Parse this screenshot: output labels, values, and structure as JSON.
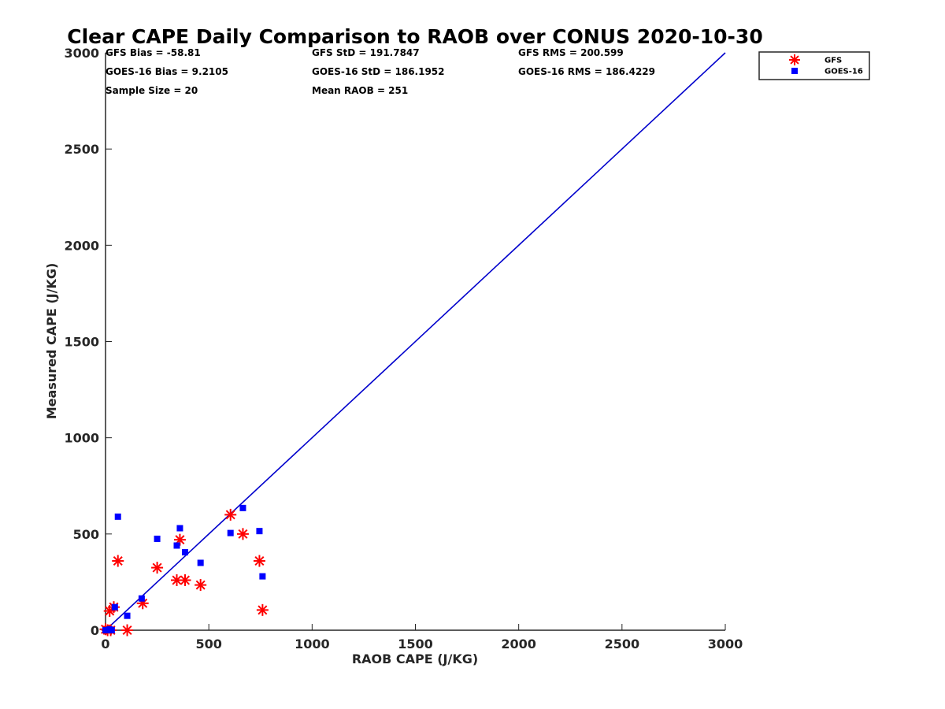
{
  "chart_data": {
    "type": "scatter",
    "title": "Clear CAPE Daily Comparison to RAOB over CONUS 2020-10-30",
    "xlabel": "RAOB CAPE (J/KG)",
    "ylabel": "Measured CAPE (J/KG)",
    "xlim": [
      0,
      3000
    ],
    "ylim": [
      0,
      3000
    ],
    "xticks": [
      0,
      500,
      1000,
      1500,
      2000,
      2500,
      3000
    ],
    "yticks": [
      0,
      500,
      1000,
      1500,
      2000,
      2500,
      3000
    ],
    "grid": false,
    "legend_position": "top-right, outside plot",
    "reference_line": {
      "x": [
        0,
        3000
      ],
      "y": [
        0,
        3000
      ],
      "color": "#0000cc"
    },
    "stats": [
      "GFS Bias = -58.81",
      "GFS StD = 191.7847",
      "GFS RMS = 200.599",
      "GOES-16 Bias = 9.2105",
      "GOES-16 StD = 186.1952",
      "GOES-16 RMS = 186.4229",
      "Sample Size = 20",
      "Mean RAOB = 251"
    ],
    "series": [
      {
        "name": "GFS",
        "marker": "asterisk",
        "color": "#ff0000",
        "x": [
          0,
          10,
          20,
          25,
          40,
          60,
          105,
          180,
          250,
          345,
          360,
          385,
          460,
          605,
          665,
          745,
          760
        ],
        "y": [
          5,
          0,
          100,
          0,
          120,
          360,
          0,
          140,
          325,
          260,
          470,
          260,
          235,
          600,
          500,
          360,
          105
        ]
      },
      {
        "name": "GOES-16",
        "marker": "square",
        "color": "#0000ff",
        "x": [
          0,
          10,
          20,
          30,
          45,
          60,
          105,
          175,
          250,
          345,
          360,
          385,
          460,
          605,
          665,
          745,
          760
        ],
        "y": [
          0,
          0,
          5,
          0,
          120,
          590,
          75,
          165,
          475,
          440,
          530,
          405,
          350,
          505,
          635,
          515,
          280
        ]
      }
    ]
  }
}
